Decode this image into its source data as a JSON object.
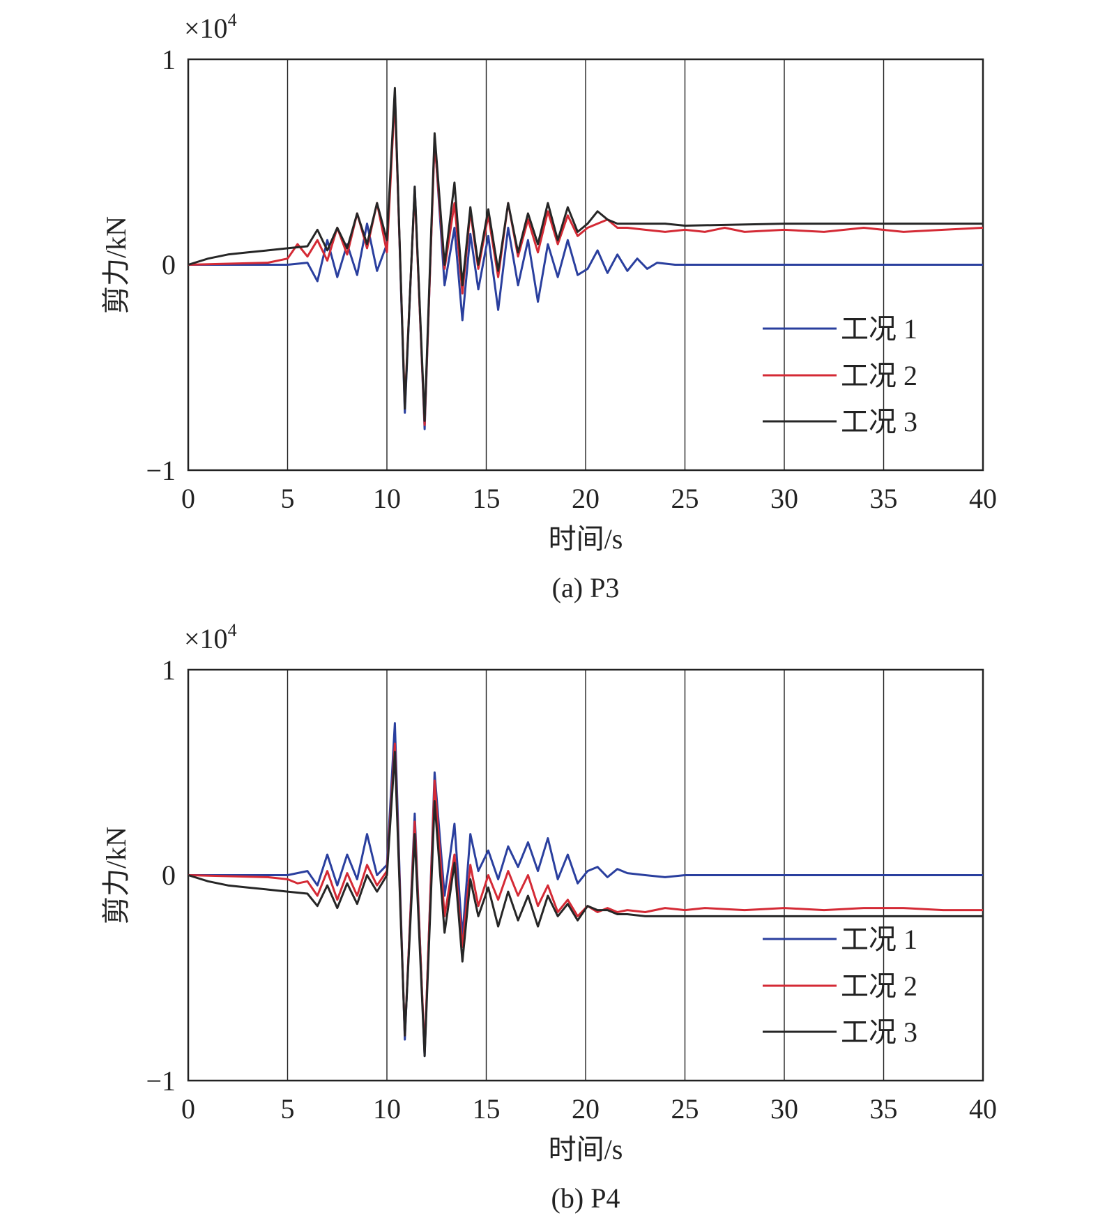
{
  "chart_data": [
    {
      "type": "line",
      "caption": "(a) P3",
      "xlabel": "时间/s",
      "ylabel": "剪力/kN",
      "multiplier": "×10",
      "multiplier_exp": "4",
      "xlim": [
        0,
        40
      ],
      "ylim": [
        -1,
        1
      ],
      "xticks": [
        "0",
        "5",
        "10",
        "15",
        "20",
        "25",
        "30",
        "35",
        "40"
      ],
      "yticks": [
        "−1",
        "0",
        "1"
      ],
      "legend": "right",
      "series": [
        {
          "name": "工况 1",
          "color": "#2a3f9e",
          "x": [
            0,
            5,
            6,
            6.5,
            7,
            7.5,
            8,
            8.5,
            9,
            9.5,
            10,
            10.4,
            10.9,
            11.4,
            11.9,
            12.4,
            12.9,
            13.4,
            13.8,
            14.2,
            14.6,
            15.1,
            15.6,
            16.1,
            16.6,
            17.1,
            17.6,
            18.1,
            18.6,
            19.1,
            19.6,
            20.1,
            20.6,
            21.1,
            21.6,
            22.1,
            22.6,
            23.1,
            23.6,
            24.5,
            26,
            40
          ],
          "values": [
            0,
            0,
            0.01,
            -0.08,
            0.12,
            -0.06,
            0.1,
            -0.05,
            0.2,
            -0.03,
            0.1,
            0.84,
            -0.72,
            0.38,
            -0.8,
            0.62,
            -0.1,
            0.18,
            -0.27,
            0.15,
            -0.12,
            0.14,
            -0.22,
            0.18,
            -0.1,
            0.12,
            -0.18,
            0.1,
            -0.06,
            0.12,
            -0.05,
            -0.02,
            0.07,
            -0.04,
            0.05,
            -0.03,
            0.03,
            -0.02,
            0.01,
            0,
            0,
            0
          ]
        },
        {
          "name": "工况 2",
          "color": "#d42a35",
          "x": [
            0,
            4,
            5,
            5.5,
            6,
            6.5,
            7,
            7.5,
            8,
            8.5,
            9,
            9.5,
            10,
            10.4,
            10.9,
            11.4,
            11.9,
            12.4,
            12.9,
            13.4,
            13.8,
            14.2,
            14.6,
            15.1,
            15.6,
            16.1,
            16.6,
            17.1,
            17.6,
            18.1,
            18.6,
            19.1,
            19.6,
            20.1,
            20.6,
            21.1,
            21.6,
            22.1,
            23,
            24,
            25,
            26,
            27,
            28,
            30,
            32,
            34,
            36,
            38,
            40
          ],
          "values": [
            0,
            0.01,
            0.03,
            0.1,
            0.04,
            0.12,
            0.02,
            0.18,
            0.05,
            0.25,
            0.08,
            0.3,
            0.06,
            0.82,
            -0.68,
            0.36,
            -0.78,
            0.6,
            -0.02,
            0.3,
            -0.14,
            0.26,
            -0.02,
            0.24,
            -0.06,
            0.3,
            0.04,
            0.22,
            0.06,
            0.26,
            0.1,
            0.24,
            0.14,
            0.18,
            0.2,
            0.22,
            0.18,
            0.18,
            0.17,
            0.16,
            0.17,
            0.16,
            0.18,
            0.16,
            0.17,
            0.16,
            0.18,
            0.16,
            0.17,
            0.18
          ]
        },
        {
          "name": "工况 3",
          "color": "#262626",
          "x": [
            0,
            1,
            2,
            3,
            4,
            5,
            6,
            6.5,
            7,
            7.5,
            8,
            8.5,
            9,
            9.5,
            10,
            10.4,
            10.9,
            11.4,
            11.9,
            12.4,
            12.9,
            13.4,
            13.8,
            14.2,
            14.6,
            15.1,
            15.6,
            16.1,
            16.6,
            17.1,
            17.6,
            18.1,
            18.6,
            19.1,
            19.6,
            20.1,
            20.6,
            21.1,
            21.6,
            22.1,
            23,
            24,
            25,
            30,
            35,
            40
          ],
          "values": [
            0,
            0.03,
            0.05,
            0.06,
            0.07,
            0.08,
            0.09,
            0.17,
            0.07,
            0.18,
            0.08,
            0.25,
            0.1,
            0.3,
            0.12,
            0.86,
            -0.7,
            0.38,
            -0.76,
            0.64,
            0,
            0.4,
            -0.1,
            0.28,
            0,
            0.27,
            -0.03,
            0.3,
            0.06,
            0.25,
            0.1,
            0.3,
            0.12,
            0.28,
            0.16,
            0.2,
            0.26,
            0.22,
            0.2,
            0.2,
            0.2,
            0.2,
            0.19,
            0.2,
            0.2,
            0.2
          ]
        }
      ]
    },
    {
      "type": "line",
      "caption": "(b) P4",
      "xlabel": "时间/s",
      "ylabel": "剪力/kN",
      "multiplier": "×10",
      "multiplier_exp": "4",
      "xlim": [
        0,
        40
      ],
      "ylim": [
        -1,
        1
      ],
      "xticks": [
        "0",
        "5",
        "10",
        "15",
        "20",
        "25",
        "30",
        "35",
        "40"
      ],
      "yticks": [
        "−1",
        "0",
        "1"
      ],
      "legend": "right",
      "series": [
        {
          "name": "工况 1",
          "color": "#2a3f9e",
          "x": [
            0,
            5,
            6,
            6.5,
            7,
            7.5,
            8,
            8.5,
            9,
            9.5,
            10,
            10.4,
            10.9,
            11.4,
            11.9,
            12.4,
            12.9,
            13.4,
            13.8,
            14.2,
            14.6,
            15.1,
            15.6,
            16.1,
            16.6,
            17.1,
            17.6,
            18.1,
            18.6,
            19.1,
            19.6,
            20.1,
            20.6,
            21.1,
            21.6,
            22.1,
            23,
            24,
            25,
            30,
            40
          ],
          "values": [
            0,
            0,
            0.02,
            -0.05,
            0.1,
            -0.05,
            0.1,
            -0.02,
            0.2,
            0,
            0.05,
            0.74,
            -0.8,
            0.3,
            -0.88,
            0.5,
            -0.1,
            0.25,
            -0.3,
            0.2,
            0.02,
            0.12,
            -0.02,
            0.14,
            0.04,
            0.16,
            0.02,
            0.18,
            -0.02,
            0.1,
            -0.04,
            0.02,
            0.04,
            -0.01,
            0.03,
            0.01,
            0,
            -0.01,
            0,
            0,
            0
          ]
        },
        {
          "name": "工况 2",
          "color": "#d42a35",
          "x": [
            0,
            4,
            5,
            5.5,
            6,
            6.5,
            7,
            7.5,
            8,
            8.5,
            9,
            9.5,
            10,
            10.4,
            10.9,
            11.4,
            11.9,
            12.4,
            12.9,
            13.4,
            13.8,
            14.2,
            14.6,
            15.1,
            15.6,
            16.1,
            16.6,
            17.1,
            17.6,
            18.1,
            18.6,
            19.1,
            19.6,
            20.1,
            20.6,
            21.1,
            21.6,
            22.1,
            23,
            24,
            25,
            26,
            28,
            30,
            32,
            34,
            36,
            38,
            40
          ],
          "values": [
            0,
            -0.01,
            -0.02,
            -0.04,
            -0.03,
            -0.1,
            0.02,
            -0.12,
            0.01,
            -0.1,
            0.05,
            -0.05,
            0.02,
            0.64,
            -0.78,
            0.26,
            -0.86,
            0.46,
            -0.2,
            0.1,
            -0.35,
            0.05,
            -0.15,
            0,
            -0.12,
            0.02,
            -0.1,
            0,
            -0.15,
            -0.05,
            -0.18,
            -0.12,
            -0.2,
            -0.15,
            -0.18,
            -0.16,
            -0.18,
            -0.17,
            -0.18,
            -0.16,
            -0.17,
            -0.16,
            -0.17,
            -0.16,
            -0.17,
            -0.16,
            -0.16,
            -0.17,
            -0.17
          ]
        },
        {
          "name": "工况 3",
          "color": "#262626",
          "x": [
            0,
            1,
            2,
            3,
            4,
            5,
            6,
            6.5,
            7,
            7.5,
            8,
            8.5,
            9,
            9.5,
            10,
            10.4,
            10.9,
            11.4,
            11.9,
            12.4,
            12.9,
            13.4,
            13.8,
            14.2,
            14.6,
            15.1,
            15.6,
            16.1,
            16.6,
            17.1,
            17.6,
            18.1,
            18.6,
            19.1,
            19.6,
            20.1,
            20.6,
            21.1,
            21.6,
            22.1,
            23,
            24,
            25,
            30,
            35,
            40
          ],
          "values": [
            0,
            -0.03,
            -0.05,
            -0.06,
            -0.07,
            -0.08,
            -0.09,
            -0.15,
            -0.05,
            -0.16,
            -0.04,
            -0.14,
            0,
            -0.08,
            0,
            0.6,
            -0.78,
            0.2,
            -0.88,
            0.36,
            -0.28,
            0.06,
            -0.42,
            -0.02,
            -0.2,
            -0.06,
            -0.25,
            -0.08,
            -0.22,
            -0.1,
            -0.25,
            -0.1,
            -0.2,
            -0.14,
            -0.22,
            -0.15,
            -0.17,
            -0.17,
            -0.19,
            -0.19,
            -0.2,
            -0.2,
            -0.2,
            -0.2,
            -0.2,
            -0.2
          ]
        }
      ]
    }
  ]
}
